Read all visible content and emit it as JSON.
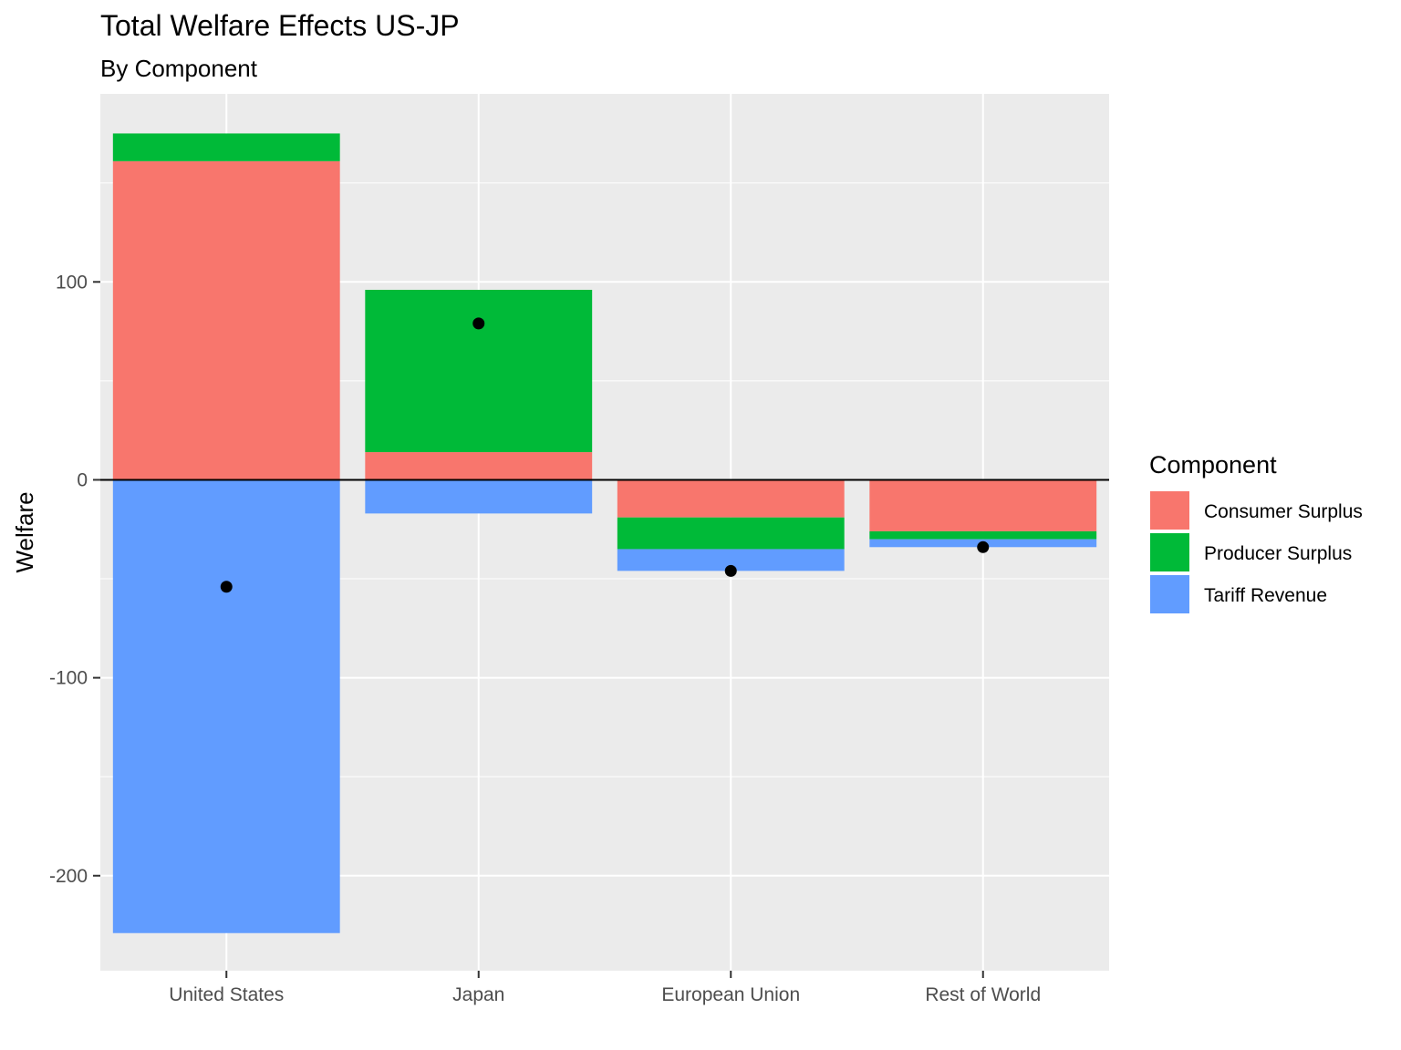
{
  "chart_data": {
    "type": "bar",
    "stacked": true,
    "title": "Total Welfare Effects US-JP",
    "subtitle": "By Component",
    "xlabel": "",
    "ylabel": "Welfare",
    "ylim": [
      -248,
      195
    ],
    "yticks": [
      -200,
      -100,
      0,
      100
    ],
    "categories": [
      "United States",
      "Japan",
      "European Union",
      "Rest of World"
    ],
    "series": [
      {
        "name": "Consumer Surplus",
        "color": "#F8766D",
        "values": [
          161,
          14,
          -19,
          -26
        ]
      },
      {
        "name": "Producer Surplus",
        "color": "#00BA38",
        "values": [
          14,
          82,
          -16,
          -4
        ]
      },
      {
        "name": "Tariff Revenue",
        "color": "#619CFF",
        "values": [
          -229,
          -17,
          -11,
          -4
        ]
      }
    ],
    "totals": [
      -54,
      79,
      -46,
      -34
    ],
    "legend": {
      "title": "Component",
      "position": "right"
    },
    "grid": true,
    "zero_line": true
  }
}
